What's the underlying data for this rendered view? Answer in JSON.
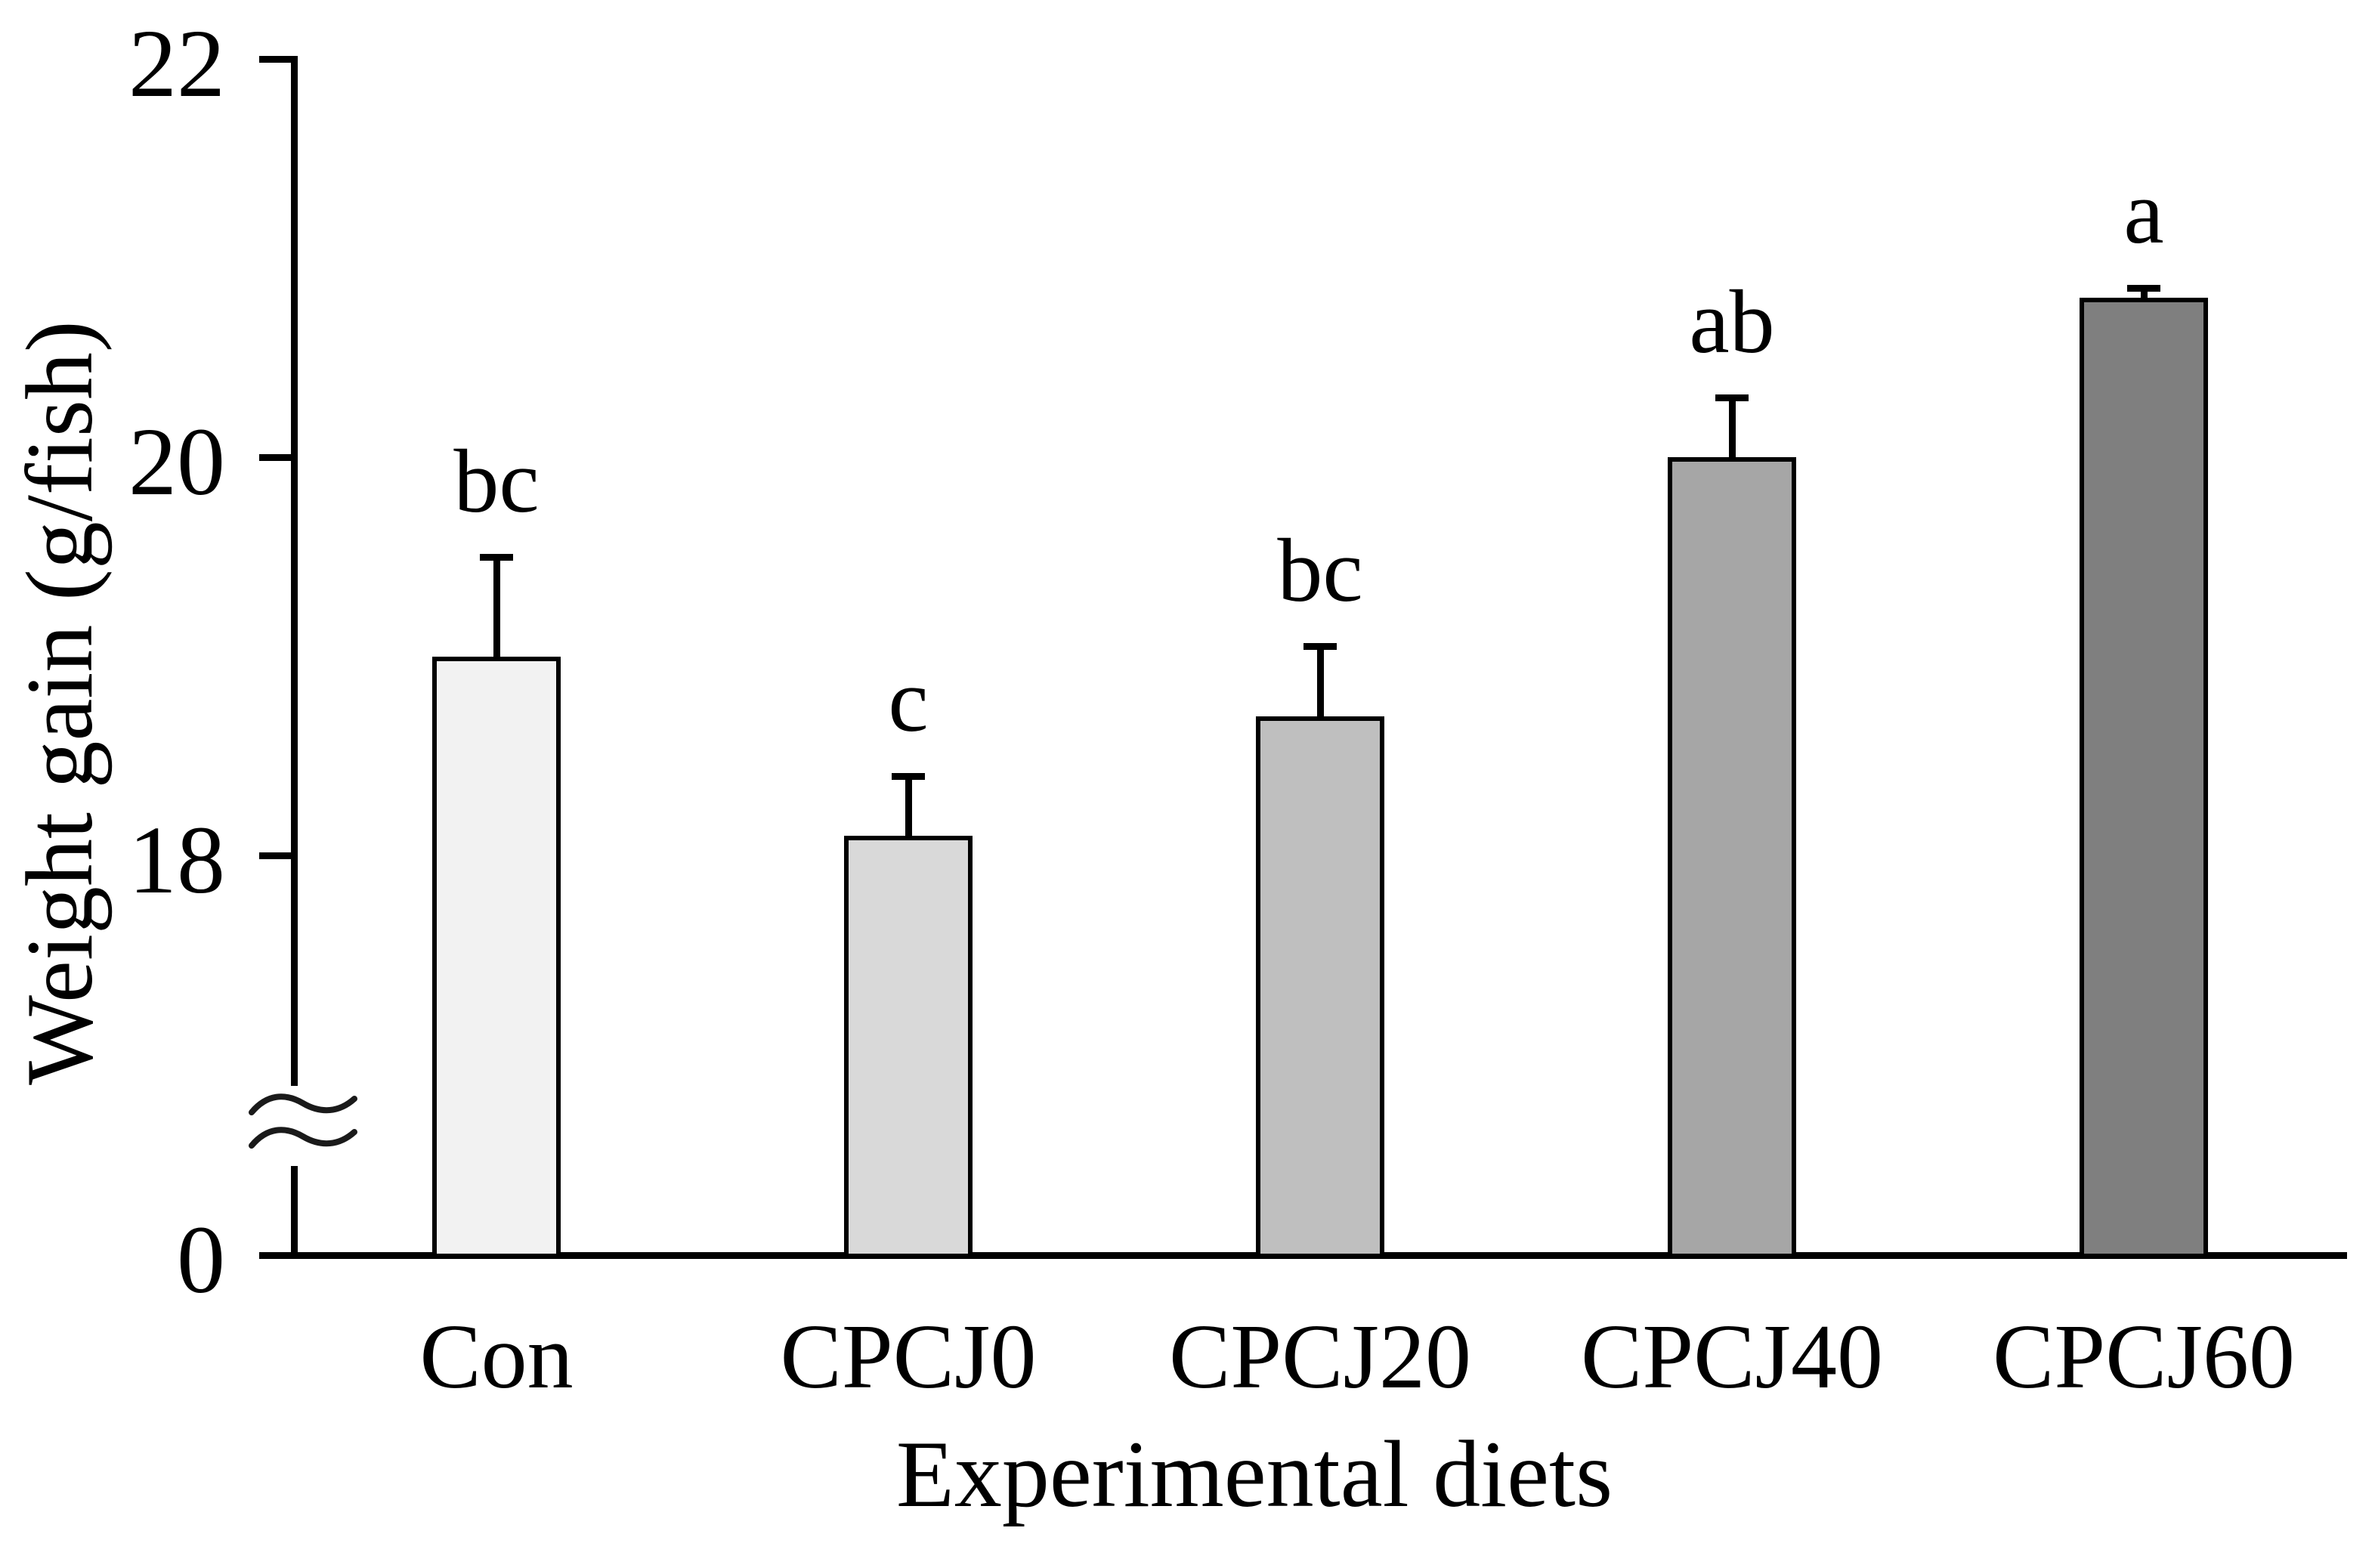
{
  "chart_data": {
    "type": "bar",
    "title": "",
    "xlabel": "Experimental diets",
    "ylabel": "Weight gain (g/fish)",
    "categories": [
      "Con",
      "CPCJ0",
      "CPCJ20",
      "CPCJ40",
      "CPCJ60"
    ],
    "values": [
      19.0,
      18.1,
      18.7,
      20.0,
      20.8
    ],
    "error_plus": [
      0.5,
      0.3,
      0.35,
      0.3,
      0.05
    ],
    "sig_letters": [
      "bc",
      "c",
      "bc",
      "ab",
      "a"
    ],
    "bar_colors": [
      "#f2f2f2",
      "#d9d9d9",
      "#bfbfbf",
      "#a6a6a6",
      "#7f7f7f"
    ],
    "bar_border_color": "#000000",
    "axis_color": "#000000",
    "ytick_values": [
      22,
      20,
      18,
      0
    ],
    "ytick_labels": [
      "22",
      "20",
      "18",
      "0"
    ],
    "ylim": [
      0,
      22
    ],
    "axis_break": {
      "present": true,
      "between": [
        0,
        18
      ]
    },
    "grid": "off",
    "legend": "none",
    "background": "#ffffff"
  }
}
